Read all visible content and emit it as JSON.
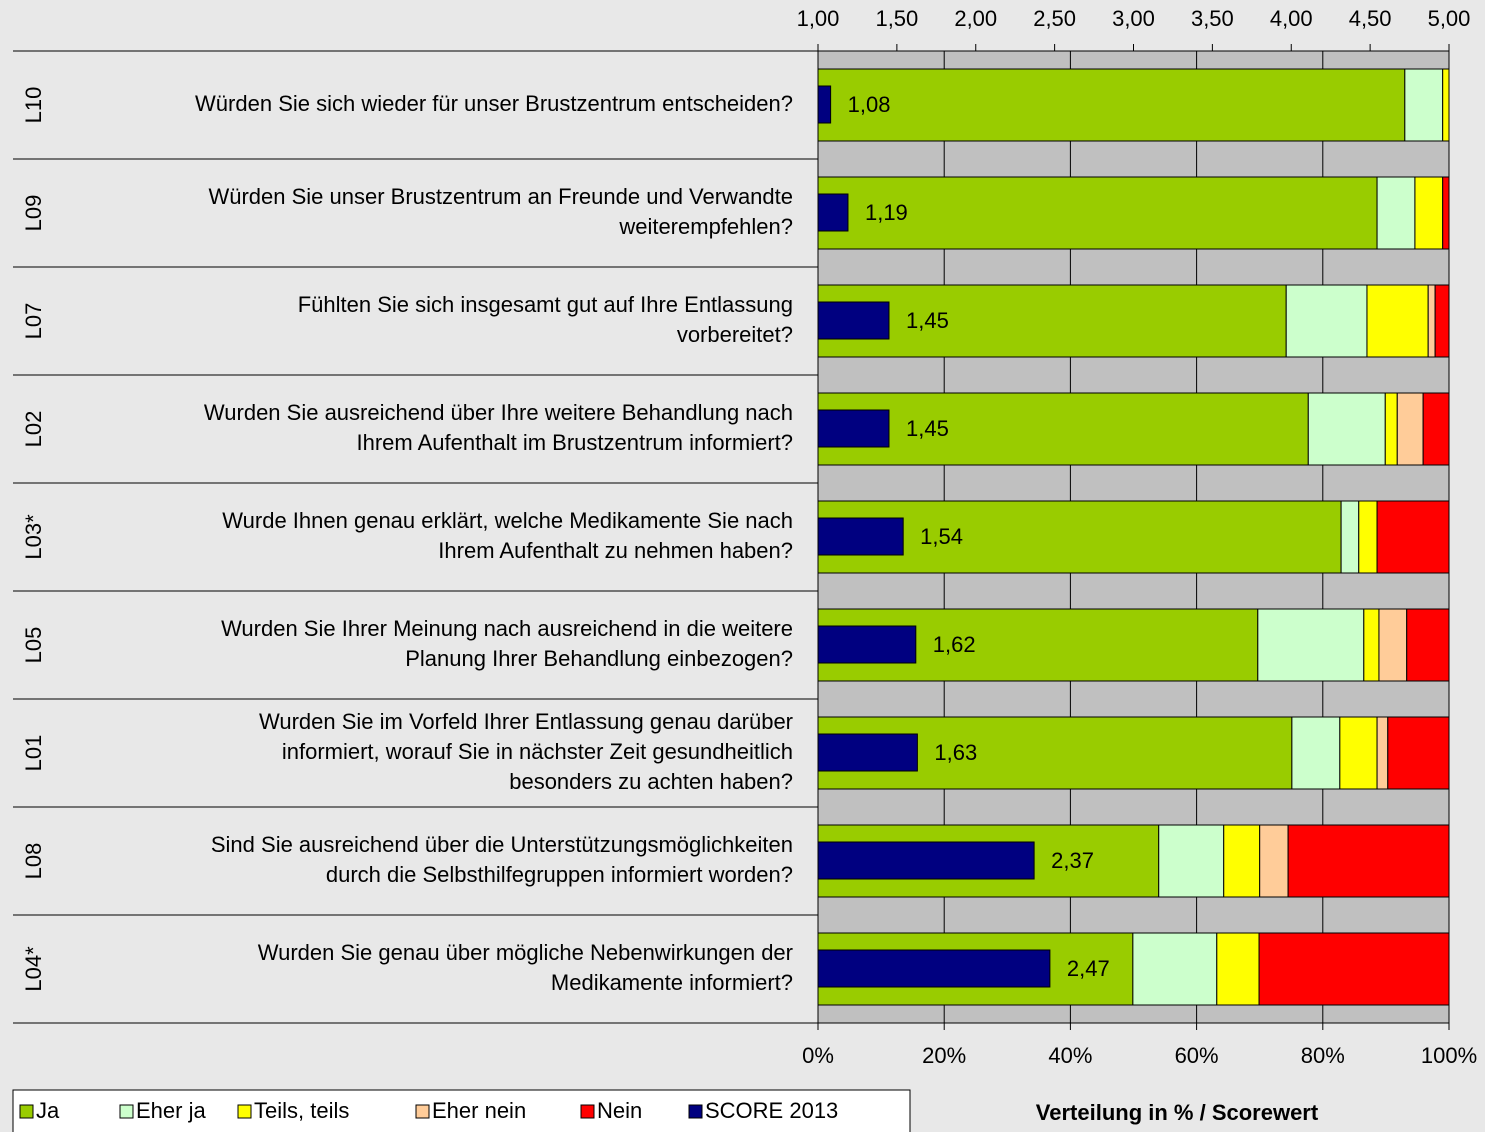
{
  "chart_data": {
    "type": "stacked_barh",
    "axis_label": "Verteilung in % / Scorewert",
    "codes": [
      "L10",
      "L09",
      "L07",
      "L02",
      "L03*",
      "L05",
      "L01",
      "L08",
      "L04*"
    ],
    "questions": [
      [
        "Würden Sie sich wieder für unser Brustzentrum entscheiden?"
      ],
      [
        "Würden Sie unser Brustzentrum an Freunde und Verwandte",
        "weiterempfehlen?"
      ],
      [
        "Fühlten Sie sich insgesamt gut auf Ihre Entlassung",
        "vorbereitet?"
      ],
      [
        "Wurden Sie ausreichend über Ihre weitere Behandlung nach",
        "Ihrem Aufenthalt im Brustzentrum informiert?"
      ],
      [
        "Wurde Ihnen genau erklärt, welche Medikamente Sie nach",
        "Ihrem Aufenthalt zu nehmen haben?"
      ],
      [
        "Wurden Sie Ihrer Meinung nach ausreichend in die weitere",
        "Planung Ihrer Behandlung einbezogen?"
      ],
      [
        "Wurden Sie im Vorfeld Ihrer Entlassung genau darüber",
        "informiert, worauf Sie in nächster Zeit gesundheitlich",
        "besonders zu achten haben?"
      ],
      [
        "Sind Sie ausreichend über die Unterstützungsmöglichkeiten",
        "durch die Selbsthilfegruppen informiert worden?"
      ],
      [
        "Wurden Sie genau über mögliche Nebenwirkungen der",
        "Medikamente informiert?"
      ]
    ],
    "series": [
      {
        "name": "Ja",
        "color": "#99cc00",
        "values": [
          93.0,
          88.6,
          74.2,
          77.7,
          82.9,
          69.7,
          75.1,
          54.0,
          49.9
        ]
      },
      {
        "name": "Eher ja",
        "color": "#ccffcc",
        "values": [
          6.0,
          6.0,
          12.8,
          12.2,
          2.8,
          16.8,
          7.6,
          10.3,
          13.3
        ]
      },
      {
        "name": "Teils, teils",
        "color": "#ffff00",
        "values": [
          1.0,
          4.4,
          9.7,
          1.9,
          2.9,
          2.4,
          5.9,
          5.7,
          6.7
        ]
      },
      {
        "name": "Eher nein",
        "color": "#ffcc99",
        "values": [
          0,
          0,
          1.1,
          4.1,
          0,
          4.4,
          1.7,
          4.5,
          0
        ]
      },
      {
        "name": "Nein",
        "color": "#ff0000",
        "values": [
          0,
          1.0,
          2.2,
          4.1,
          11.4,
          6.7,
          9.7,
          25.5,
          30.1
        ]
      },
      {
        "name": "SCORE 2013",
        "color": "#000080",
        "axis": "x2",
        "values": [
          1.08,
          1.19,
          1.45,
          1.45,
          1.54,
          1.62,
          1.63,
          2.37,
          2.47
        ],
        "value_labels": [
          "1,08",
          "1,19",
          "1,45",
          "1,45",
          "1,54",
          "1,62",
          "1,63",
          "2,37",
          "2,47"
        ]
      }
    ],
    "xlim": [
      0,
      100
    ],
    "xticks": [
      {
        "value": 0,
        "label": "0%"
      },
      {
        "value": 20,
        "label": "20%"
      },
      {
        "value": 40,
        "label": "40%"
      },
      {
        "value": 60,
        "label": "60%"
      },
      {
        "value": 80,
        "label": "80%"
      },
      {
        "value": 100,
        "label": "100%"
      }
    ],
    "x2lim": [
      1,
      5
    ],
    "x2ticks": [
      {
        "value": 1,
        "label": "1,00"
      },
      {
        "value": 1.5,
        "label": "1,50"
      },
      {
        "value": 2,
        "label": "2,00"
      },
      {
        "value": 2.5,
        "label": "2,50"
      },
      {
        "value": 3,
        "label": "3,00"
      },
      {
        "value": 3.5,
        "label": "3,50"
      },
      {
        "value": 4,
        "label": "4,00"
      },
      {
        "value": 4.5,
        "label": "4,50"
      },
      {
        "value": 5,
        "label": "5,00"
      }
    ],
    "grid": true
  }
}
